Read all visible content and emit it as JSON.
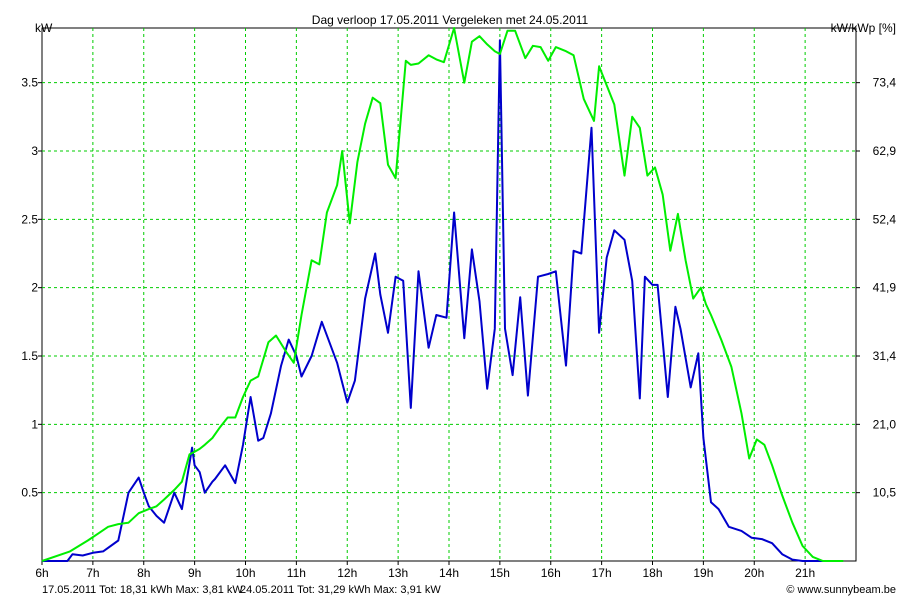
{
  "chart_data": {
    "type": "line",
    "title": "Dag  verloop 17.05.2011   Vergeleken met 24.05.2011",
    "ylabel_left": "kW",
    "ylabel_right": "kW/kWp [%]",
    "x_ticks": [
      "6h",
      "7h",
      "8h",
      "9h",
      "10h",
      "11h",
      "12h",
      "13h",
      "14h",
      "15h",
      "16h",
      "17h",
      "18h",
      "19h",
      "20h",
      "21h"
    ],
    "x_range_hours": [
      6,
      22
    ],
    "ylim": [
      0,
      3.9
    ],
    "y_ticks": [
      "0.5",
      "1",
      "1.5",
      "2",
      "2.5",
      "3",
      "3.5"
    ],
    "y_ticks_right": [
      "10,5",
      "21,0",
      "31,4",
      "41,9",
      "52,4",
      "62,9",
      "73,4"
    ],
    "grid": true,
    "legend": [
      {
        "text": "17.05.2011 Tot: 18,31 kWh Max: 3,81 kW",
        "color": "#0000cc"
      },
      {
        "text": "24.05.2011 Tot: 31,29 kWh Max: 3,91 kW",
        "color": "#00ee00"
      }
    ],
    "copyright": "© www.sunnybeam.be",
    "series": [
      {
        "color": "#0000cc",
        "x": [
          6.0,
          6.5,
          6.6,
          6.8,
          7.0,
          7.2,
          7.5,
          7.7,
          7.9,
          8.0,
          8.1,
          8.25,
          8.4,
          8.6,
          8.75,
          8.95,
          9.0,
          9.1,
          9.2,
          9.35,
          9.4,
          9.6,
          9.8,
          9.95,
          10.1,
          10.25,
          10.35,
          10.5,
          10.7,
          10.85,
          11.0,
          11.1,
          11.3,
          11.5,
          11.8,
          12.0,
          12.15,
          12.35,
          12.55,
          12.65,
          12.8,
          12.95,
          13.1,
          13.25,
          13.4,
          13.6,
          13.75,
          13.95,
          14.1,
          14.3,
          14.45,
          14.6,
          14.75,
          14.9,
          15.0,
          15.1,
          15.25,
          15.4,
          15.55,
          15.75,
          15.95,
          16.1,
          16.3,
          16.45,
          16.6,
          16.8,
          16.95,
          17.1,
          17.25,
          17.45,
          17.6,
          17.75,
          17.85,
          18.0,
          18.1,
          18.3,
          18.45,
          18.55,
          18.75,
          18.9,
          19.0,
          19.15,
          19.3,
          19.5,
          19.75,
          19.95,
          20.15,
          20.35,
          20.55,
          20.75,
          20.95,
          21.1,
          21.3,
          21.5
        ],
        "y": [
          0.0,
          0.0,
          0.05,
          0.04,
          0.06,
          0.07,
          0.15,
          0.5,
          0.61,
          0.5,
          0.4,
          0.33,
          0.28,
          0.5,
          0.38,
          0.83,
          0.7,
          0.65,
          0.5,
          0.58,
          0.6,
          0.7,
          0.57,
          0.85,
          1.2,
          0.88,
          0.9,
          1.08,
          1.43,
          1.62,
          1.5,
          1.35,
          1.5,
          1.75,
          1.45,
          1.16,
          1.32,
          1.92,
          2.25,
          1.95,
          1.67,
          2.08,
          2.05,
          1.12,
          2.12,
          1.56,
          1.8,
          1.78,
          2.55,
          1.63,
          2.28,
          1.9,
          1.26,
          1.7,
          3.81,
          1.7,
          1.36,
          1.93,
          1.21,
          2.08,
          2.1,
          2.12,
          1.43,
          2.27,
          2.25,
          3.17,
          1.67,
          2.22,
          2.42,
          2.35,
          2.05,
          1.19,
          2.08,
          2.02,
          2.02,
          1.2,
          1.86,
          1.7,
          1.27,
          1.52,
          0.9,
          0.43,
          0.38,
          0.25,
          0.22,
          0.17,
          0.16,
          0.13,
          0.05,
          0.01,
          0.0,
          0.0,
          0.0,
          0.0
        ]
      },
      {
        "color": "#00ee00",
        "x": [
          6.0,
          6.55,
          6.9,
          7.1,
          7.3,
          7.5,
          7.7,
          7.9,
          8.1,
          8.25,
          8.4,
          8.6,
          8.75,
          8.9,
          9.0,
          9.1,
          9.2,
          9.35,
          9.5,
          9.65,
          9.8,
          9.95,
          10.1,
          10.25,
          10.45,
          10.6,
          10.8,
          10.95,
          11.1,
          11.3,
          11.45,
          11.6,
          11.8,
          11.9,
          12.05,
          12.2,
          12.35,
          12.5,
          12.65,
          12.8,
          12.95,
          13.15,
          13.25,
          13.4,
          13.6,
          13.75,
          13.9,
          14.1,
          14.3,
          14.45,
          14.6,
          14.75,
          14.9,
          15.0,
          15.15,
          15.3,
          15.5,
          15.65,
          15.8,
          15.95,
          16.1,
          16.3,
          16.45,
          16.65,
          16.85,
          16.95,
          17.1,
          17.25,
          17.45,
          17.6,
          17.75,
          17.9,
          18.05,
          18.2,
          18.35,
          18.5,
          18.65,
          18.8,
          18.95,
          19.05,
          19.15,
          19.35,
          19.55,
          19.75,
          19.9,
          20.05,
          20.2,
          20.35,
          20.55,
          20.75,
          20.95,
          21.15,
          21.35,
          21.55,
          21.75
        ],
        "y": [
          0.0,
          0.07,
          0.15,
          0.2,
          0.25,
          0.27,
          0.28,
          0.35,
          0.38,
          0.4,
          0.45,
          0.52,
          0.58,
          0.78,
          0.8,
          0.82,
          0.85,
          0.9,
          0.98,
          1.05,
          1.05,
          1.2,
          1.32,
          1.35,
          1.6,
          1.65,
          1.53,
          1.45,
          1.8,
          2.2,
          2.17,
          2.55,
          2.75,
          3.0,
          2.47,
          2.92,
          3.2,
          3.39,
          3.35,
          2.9,
          2.8,
          3.66,
          3.63,
          3.64,
          3.7,
          3.67,
          3.65,
          3.9,
          3.5,
          3.8,
          3.84,
          3.78,
          3.73,
          3.71,
          3.88,
          3.88,
          3.68,
          3.77,
          3.76,
          3.66,
          3.76,
          3.73,
          3.7,
          3.38,
          3.22,
          3.62,
          3.48,
          3.34,
          2.82,
          3.25,
          3.17,
          2.82,
          2.88,
          2.68,
          2.27,
          2.54,
          2.2,
          1.92,
          2.0,
          1.88,
          1.8,
          1.62,
          1.42,
          1.08,
          0.75,
          0.89,
          0.85,
          0.7,
          0.48,
          0.28,
          0.11,
          0.03,
          0.0,
          0.0,
          0.0
        ]
      }
    ]
  }
}
